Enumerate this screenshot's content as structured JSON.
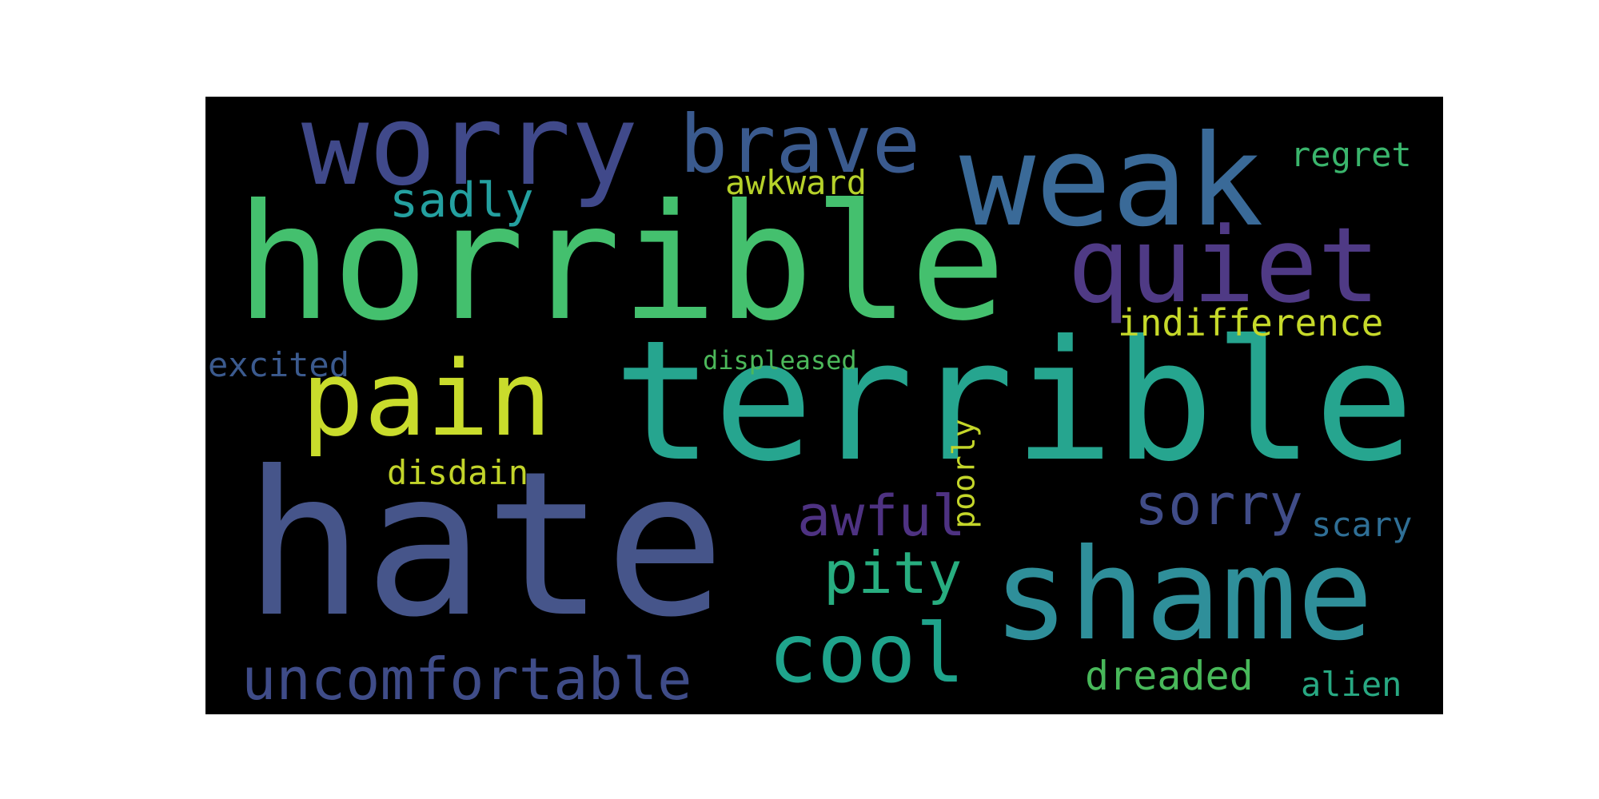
{
  "wordcloud": {
    "words": [
      {
        "id": "hate",
        "text": "hate",
        "color": "#46558a"
      },
      {
        "id": "terrible",
        "text": "terrible",
        "color": "#26a58f"
      },
      {
        "id": "horrible",
        "text": "horrible",
        "color": "#44c06e"
      },
      {
        "id": "shame",
        "text": "shame",
        "color": "#2f8f9a"
      },
      {
        "id": "weak",
        "text": "weak",
        "color": "#3a6a98"
      },
      {
        "id": "worry",
        "text": "worry",
        "color": "#40498a"
      },
      {
        "id": "quiet",
        "text": "quiet",
        "color": "#4f3a85"
      },
      {
        "id": "pain",
        "text": "pain",
        "color": "#c9dc2c"
      },
      {
        "id": "brave",
        "text": "brave",
        "color": "#3a5a8e"
      },
      {
        "id": "cool",
        "text": "cool",
        "color": "#1fa48c"
      },
      {
        "id": "uncomfortable",
        "text": "uncomfortable",
        "color": "#3f4c88"
      },
      {
        "id": "sorry",
        "text": "sorry",
        "color": "#404c88"
      },
      {
        "id": "awful",
        "text": "awful",
        "color": "#4e3282"
      },
      {
        "id": "pity",
        "text": "pity",
        "color": "#28ae80"
      },
      {
        "id": "sadly",
        "text": "sadly",
        "color": "#24a0a0"
      },
      {
        "id": "indifference",
        "text": "indifference",
        "color": "#c6d92a"
      },
      {
        "id": "dreaded",
        "text": "dreaded",
        "color": "#48b85a"
      },
      {
        "id": "regret",
        "text": "regret",
        "color": "#3ab56c"
      },
      {
        "id": "awkward",
        "text": "awkward",
        "color": "#b6d12a"
      },
      {
        "id": "disdain",
        "text": "disdain",
        "color": "#c2d42a"
      },
      {
        "id": "excited",
        "text": "excited",
        "color": "#3b5a8e"
      },
      {
        "id": "scary",
        "text": "scary",
        "color": "#2f6f96"
      },
      {
        "id": "alien",
        "text": "alien",
        "color": "#28a882"
      },
      {
        "id": "displeased",
        "text": "displeased",
        "color": "#4cb85a"
      },
      {
        "id": "poorly",
        "text": "poorly",
        "color": "#c4d62a"
      }
    ]
  }
}
